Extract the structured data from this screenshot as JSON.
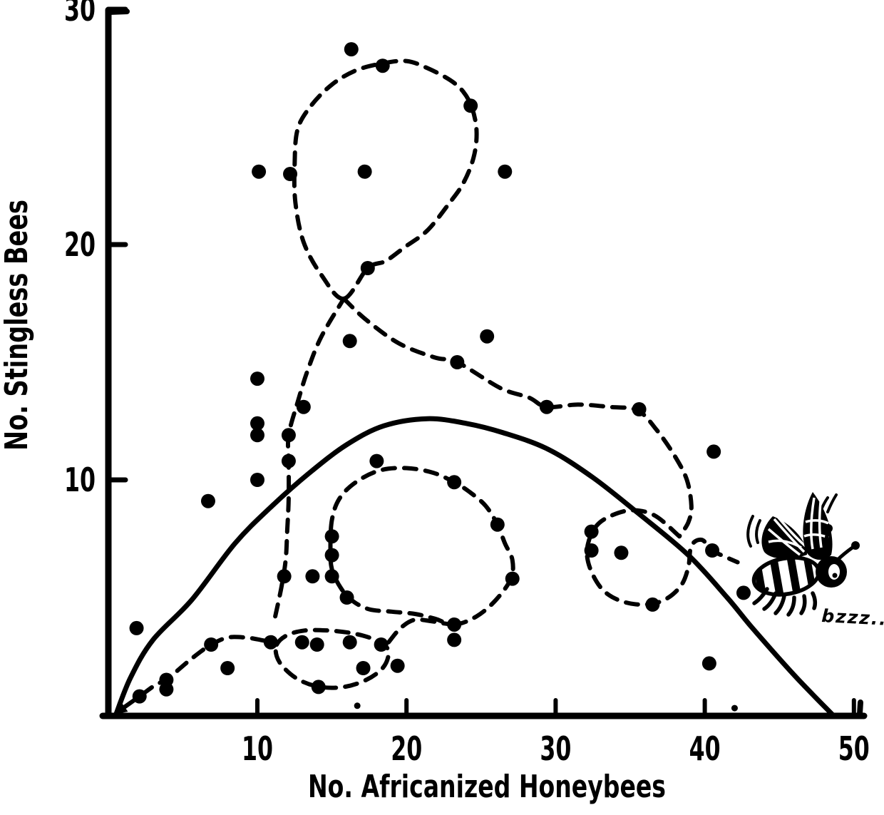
{
  "figure": {
    "kind": "hand-drawn scatter plot (scanned, black ink on white)",
    "ink_color": "#000000",
    "background_color": "#ffffff"
  },
  "chart_data": {
    "type": "scatter",
    "title": "",
    "xlabel": "No. Africanized Honeybees",
    "ylabel": "No. Stingless Bees",
    "xlim": [
      0,
      51
    ],
    "ylim": [
      0,
      30.5
    ],
    "x_ticks": [
      10,
      20,
      30,
      40,
      50
    ],
    "y_ticks": [
      10,
      20,
      30
    ],
    "grid": false,
    "points": [
      [
        1.9,
        3.7
      ],
      [
        2.1,
        0.8
      ],
      [
        3.9,
        1.5
      ],
      [
        3.9,
        1.1
      ],
      [
        6.9,
        3.0
      ],
      [
        8.0,
        2.0
      ],
      [
        6.7,
        9.1
      ],
      [
        10.0,
        14.3
      ],
      [
        10.0,
        12.4
      ],
      [
        10.0,
        11.9
      ],
      [
        10.0,
        10.0
      ],
      [
        10.1,
        23.1
      ],
      [
        10.9,
        3.1
      ],
      [
        11.8,
        5.9
      ],
      [
        12.1,
        11.9
      ],
      [
        12.1,
        10.8
      ],
      [
        12.2,
        23.0
      ],
      [
        13.1,
        13.1
      ],
      [
        13.0,
        3.1
      ],
      [
        13.7,
        5.9
      ],
      [
        14.0,
        3.0
      ],
      [
        14.1,
        1.2
      ],
      [
        15.0,
        7.6
      ],
      [
        15.0,
        6.8
      ],
      [
        15.0,
        5.9
      ],
      [
        16.0,
        5.0
      ],
      [
        16.2,
        3.1
      ],
      [
        16.3,
        28.3
      ],
      [
        16.2,
        15.9
      ],
      [
        17.2,
        23.1
      ],
      [
        17.4,
        19.0
      ],
      [
        18.0,
        10.8
      ],
      [
        18.3,
        3.0
      ],
      [
        18.4,
        27.6
      ],
      [
        17.1,
        2.0
      ],
      [
        19.4,
        2.1
      ],
      [
        23.2,
        9.9
      ],
      [
        23.4,
        15.0
      ],
      [
        23.2,
        3.85
      ],
      [
        23.2,
        3.2
      ],
      [
        24.3,
        25.9
      ],
      [
        25.4,
        16.1
      ],
      [
        26.1,
        8.1
      ],
      [
        26.6,
        23.1
      ],
      [
        27.1,
        5.8
      ],
      [
        29.4,
        13.1
      ],
      [
        32.4,
        7.8
      ],
      [
        32.4,
        7.0
      ],
      [
        34.4,
        6.9
      ],
      [
        35.6,
        13.0
      ],
      [
        36.5,
        4.7
      ],
      [
        40.5,
        7.0
      ],
      [
        40.3,
        2.2
      ],
      [
        40.6,
        11.2
      ],
      [
        42.6,
        5.2
      ]
    ],
    "small_marks": [
      [
        16.7,
        0.4
      ],
      [
        42.0,
        0.3
      ]
    ],
    "solid_curve": [
      [
        0.5,
        0.0
      ],
      [
        1.5,
        1.6
      ],
      [
        3.0,
        3.2
      ],
      [
        5.6,
        4.9
      ],
      [
        8.5,
        7.3
      ],
      [
        11.0,
        8.9
      ],
      [
        13.5,
        10.3
      ],
      [
        16.0,
        11.5
      ],
      [
        18.5,
        12.3
      ],
      [
        21.4,
        12.6
      ],
      [
        24.0,
        12.4
      ],
      [
        26.5,
        12.0
      ],
      [
        29.5,
        11.3
      ],
      [
        32.5,
        10.1
      ],
      [
        35.5,
        8.6
      ],
      [
        38.9,
        6.8
      ],
      [
        41.5,
        5.0
      ],
      [
        43.2,
        3.7
      ],
      [
        46.0,
        1.7
      ],
      [
        48.6,
        0.0
      ]
    ],
    "dashed_segments": [
      {
        "name": "entry-run",
        "arrow_start": true,
        "closed": false,
        "points": [
          [
            1.1,
            0.35
          ],
          [
            2.1,
            0.8
          ],
          [
            3.2,
            1.3
          ],
          [
            3.9,
            1.5
          ],
          [
            5.2,
            2.2
          ],
          [
            6.2,
            2.7
          ],
          [
            6.9,
            3.0
          ],
          [
            8.0,
            3.3
          ],
          [
            9.2,
            3.3
          ],
          [
            10.2,
            3.2
          ],
          [
            10.9,
            3.1
          ]
        ]
      },
      {
        "name": "small-loop",
        "closed": true,
        "points": [
          [
            11.3,
            3.0
          ],
          [
            12.0,
            3.4
          ],
          [
            13.2,
            3.6
          ],
          [
            14.7,
            3.6
          ],
          [
            16.2,
            3.5
          ],
          [
            17.5,
            3.3
          ],
          [
            18.5,
            3.0
          ],
          [
            18.8,
            2.6
          ],
          [
            18.4,
            2.0
          ],
          [
            17.3,
            1.5
          ],
          [
            15.8,
            1.2
          ],
          [
            14.2,
            1.2
          ],
          [
            12.8,
            1.5
          ],
          [
            11.8,
            2.0
          ],
          [
            11.3,
            2.5
          ]
        ]
      },
      {
        "name": "connector-right",
        "closed": false,
        "points": [
          [
            18.8,
            3.1
          ],
          [
            19.6,
            3.7
          ],
          [
            20.5,
            4.05
          ],
          [
            21.6,
            4.0
          ],
          [
            22.5,
            3.9
          ],
          [
            23.2,
            3.85
          ]
        ]
      },
      {
        "name": "middle-loop",
        "closed": true,
        "points": [
          [
            23.2,
            3.85
          ],
          [
            24.7,
            4.2
          ],
          [
            26.0,
            4.9
          ],
          [
            27.0,
            5.8
          ],
          [
            27.1,
            6.6
          ],
          [
            26.6,
            7.3
          ],
          [
            26.1,
            8.1
          ],
          [
            25.3,
            8.9
          ],
          [
            24.2,
            9.5
          ],
          [
            23.2,
            9.9
          ],
          [
            21.8,
            10.3
          ],
          [
            20.0,
            10.5
          ],
          [
            18.2,
            10.4
          ],
          [
            16.6,
            9.9
          ],
          [
            15.5,
            9.2
          ],
          [
            15.0,
            8.3
          ],
          [
            14.9,
            7.1
          ],
          [
            15.0,
            6.2
          ],
          [
            15.6,
            5.4
          ],
          [
            16.4,
            4.85
          ],
          [
            17.5,
            4.5
          ],
          [
            19.0,
            4.4
          ],
          [
            20.6,
            4.3
          ],
          [
            21.9,
            4.1
          ]
        ]
      },
      {
        "name": "vertical-connector",
        "closed": false,
        "points": [
          [
            11.2,
            4.2
          ],
          [
            11.6,
            5.4
          ],
          [
            11.9,
            6.6
          ],
          [
            12.0,
            7.8
          ],
          [
            12.1,
            9.2
          ],
          [
            12.1,
            10.8
          ],
          [
            12.1,
            11.9
          ],
          [
            12.7,
            13.3
          ],
          [
            13.4,
            14.7
          ],
          [
            14.3,
            16.1
          ],
          [
            15.8,
            17.7
          ]
        ]
      },
      {
        "name": "top-loop",
        "closed": true,
        "points": [
          [
            15.8,
            17.7
          ],
          [
            14.3,
            18.7
          ],
          [
            13.1,
            20.1
          ],
          [
            12.55,
            21.8
          ],
          [
            12.5,
            23.4
          ],
          [
            12.7,
            24.9
          ],
          [
            13.6,
            25.9
          ],
          [
            15.0,
            26.8
          ],
          [
            16.6,
            27.4
          ],
          [
            18.4,
            27.7
          ],
          [
            20.0,
            27.8
          ],
          [
            21.4,
            27.5
          ],
          [
            22.9,
            27.0
          ],
          [
            23.8,
            26.5
          ],
          [
            24.4,
            25.8
          ],
          [
            24.7,
            24.8
          ],
          [
            24.5,
            23.7
          ],
          [
            23.8,
            22.6
          ],
          [
            22.8,
            21.7
          ],
          [
            21.4,
            20.6
          ],
          [
            19.9,
            19.9
          ],
          [
            18.6,
            19.3
          ],
          [
            17.4,
            19.0
          ]
        ]
      },
      {
        "name": "descending-line",
        "closed": false,
        "points": [
          [
            15.8,
            17.7
          ],
          [
            17.3,
            16.8
          ],
          [
            19.5,
            15.8
          ],
          [
            21.9,
            15.2
          ],
          [
            23.4,
            15.0
          ],
          [
            26.3,
            13.9
          ],
          [
            28.2,
            13.5
          ],
          [
            29.4,
            13.1
          ],
          [
            31.5,
            13.2
          ],
          [
            33.6,
            13.1
          ],
          [
            35.5,
            12.95
          ],
          [
            36.8,
            12.1
          ],
          [
            38.0,
            11.0
          ],
          [
            38.8,
            10.0
          ],
          [
            39.1,
            8.9
          ],
          [
            38.9,
            8.2
          ],
          [
            38.3,
            7.6
          ]
        ]
      },
      {
        "name": "right-loop",
        "closed": false,
        "points": [
          [
            38.3,
            7.6
          ],
          [
            36.6,
            8.5
          ],
          [
            34.9,
            8.7
          ],
          [
            33.2,
            8.3
          ],
          [
            32.4,
            7.7
          ],
          [
            32.1,
            6.9
          ],
          [
            32.4,
            6.1
          ],
          [
            33.2,
            5.3
          ],
          [
            34.4,
            4.85
          ],
          [
            35.9,
            4.7
          ],
          [
            37.3,
            4.9
          ],
          [
            38.4,
            5.5
          ],
          [
            38.9,
            6.3
          ],
          [
            39.1,
            7.2
          ],
          [
            39.8,
            7.45
          ],
          [
            40.5,
            7.0
          ],
          [
            41.3,
            6.75
          ],
          [
            42.2,
            6.5
          ]
        ]
      }
    ],
    "annotations": [
      {
        "text": "bzzz..",
        "x": 47.8,
        "y": 4.0
      }
    ],
    "legend": null
  }
}
